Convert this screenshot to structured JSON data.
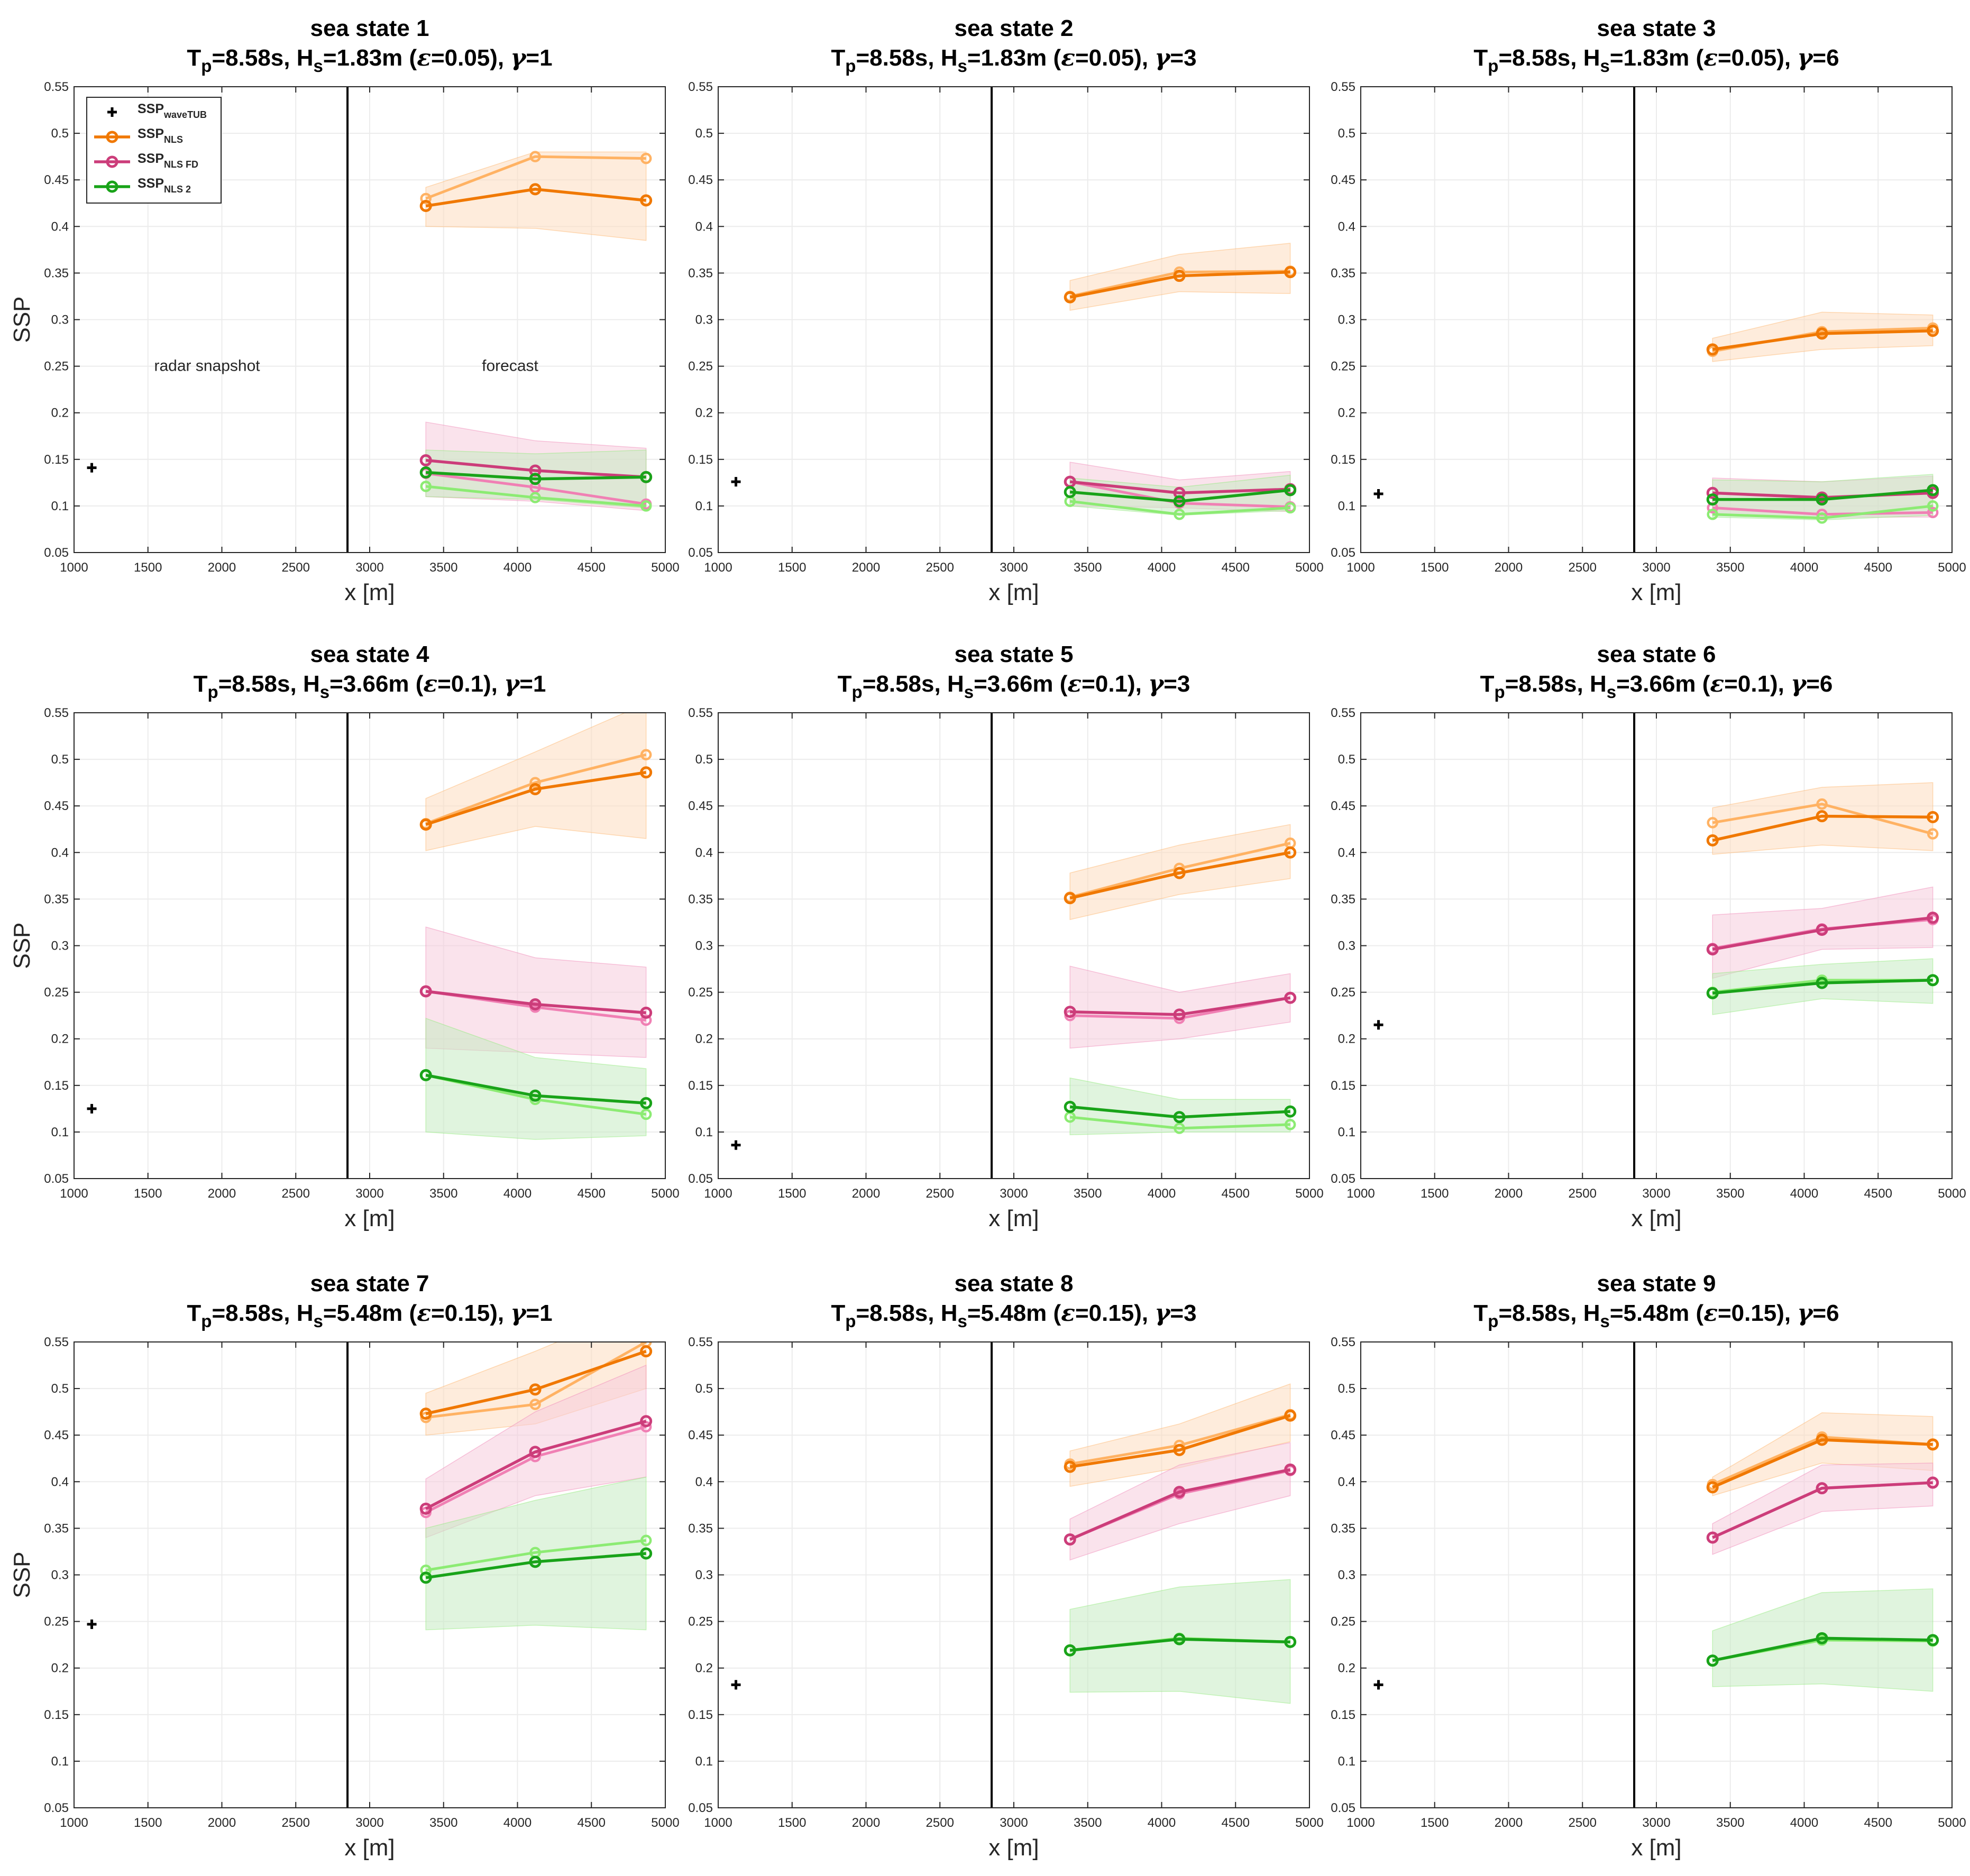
{
  "shared": {
    "xlabel": "x [m]",
    "ylabel": "SSP",
    "xlim": [
      1000,
      5000
    ],
    "ylim": [
      0.05,
      0.55
    ],
    "xticks": [
      1000,
      1500,
      2000,
      2500,
      3000,
      3500,
      4000,
      4500,
      5000
    ],
    "yticks": [
      "0.05",
      "0.1",
      "0.15",
      "0.2",
      "0.25",
      "0.3",
      "0.35",
      "0.4",
      "0.45",
      "0.5",
      "0.55"
    ],
    "radar_boundary_x": 2850,
    "region_labels": {
      "snapshot": "radar snapshot",
      "forecast": "forecast"
    },
    "legend": [
      {
        "base": "SSP",
        "sub": "waveTUB",
        "marker": "plus",
        "color": "#000000"
      },
      {
        "base": "SSP",
        "sub": "NLS",
        "marker": "circle",
        "color": "#F07800"
      },
      {
        "base": "SSP",
        "sub": "NLS FD",
        "marker": "circle",
        "color": "#CC3D7A"
      },
      {
        "base": "SSP",
        "sub": "NLS 2",
        "marker": "circle",
        "color": "#19A319"
      }
    ],
    "colors": {
      "nls": "#F07800",
      "nls_light": "#FFB263",
      "nls_band": "#FDDDBF",
      "nlsfd": "#CC3D7A",
      "nlsfd_light": "#F080B4",
      "nlsfd_band": "#F5CCDC",
      "nls2": "#19A319",
      "nls2_light": "#8CEB73",
      "nls2_band": "#C7EBC2",
      "wavetub": "#000000"
    }
  },
  "chart_data": [
    {
      "type": "line",
      "title": "sea state 1",
      "subtitle": {
        "Tp": "8.58s",
        "Hs": "1.83m",
        "eps": "0.05",
        "gamma": "1"
      },
      "waveTUB": {
        "x": 1120,
        "y": 0.141
      },
      "x": [
        3380,
        4120,
        4870
      ],
      "series": [
        {
          "name": "NLS",
          "values": [
            0.422,
            0.44,
            0.428
          ],
          "light": [
            0.43,
            0.475,
            0.473
          ],
          "band": [
            [
              0.4,
              0.442
            ],
            [
              0.398,
              0.48
            ],
            [
              0.385,
              0.48
            ]
          ]
        },
        {
          "name": "NLS FD",
          "values": [
            0.149,
            0.138,
            0.131
          ],
          "light": [
            0.135,
            0.12,
            0.102
          ],
          "band": [
            [
              0.11,
              0.19
            ],
            [
              0.105,
              0.17
            ],
            [
              0.095,
              0.162
            ]
          ]
        },
        {
          "name": "NLS 2",
          "values": [
            0.136,
            0.129,
            0.131
          ],
          "light": [
            0.121,
            0.109,
            0.1
          ],
          "band": [
            [
              0.11,
              0.16
            ],
            [
              0.107,
              0.156
            ],
            [
              0.098,
              0.16
            ]
          ]
        }
      ]
    },
    {
      "type": "line",
      "title": "sea state 2",
      "subtitle": {
        "Tp": "8.58s",
        "Hs": "1.83m",
        "eps": "0.05",
        "gamma": "3"
      },
      "waveTUB": {
        "x": 1120,
        "y": 0.126
      },
      "x": [
        3380,
        4120,
        4870
      ],
      "series": [
        {
          "name": "NLS",
          "values": [
            0.324,
            0.347,
            0.351
          ],
          "light": [
            0.325,
            0.351,
            0.352
          ],
          "band": [
            [
              0.31,
              0.342
            ],
            [
              0.33,
              0.37
            ],
            [
              0.328,
              0.382
            ]
          ]
        },
        {
          "name": "NLS FD",
          "values": [
            0.126,
            0.114,
            0.118
          ],
          "light": [
            0.126,
            0.103,
            0.099
          ],
          "band": [
            [
              0.1,
              0.147
            ],
            [
              0.098,
              0.128
            ],
            [
              0.094,
              0.137
            ]
          ]
        },
        {
          "name": "NLS 2",
          "values": [
            0.115,
            0.105,
            0.117
          ],
          "light": [
            0.105,
            0.091,
            0.098
          ],
          "band": [
            [
              0.1,
              0.13
            ],
            [
              0.09,
              0.12
            ],
            [
              0.095,
              0.133
            ]
          ]
        }
      ]
    },
    {
      "type": "line",
      "title": "sea state 3",
      "subtitle": {
        "Tp": "8.58s",
        "Hs": "1.83m",
        "eps": "0.05",
        "gamma": "6"
      },
      "waveTUB": {
        "x": 1120,
        "y": 0.113
      },
      "x": [
        3380,
        4120,
        4870
      ],
      "series": [
        {
          "name": "NLS",
          "values": [
            0.268,
            0.285,
            0.288
          ],
          "light": [
            0.266,
            0.287,
            0.291
          ],
          "band": [
            [
              0.255,
              0.28
            ],
            [
              0.268,
              0.308
            ],
            [
              0.272,
              0.305
            ]
          ]
        },
        {
          "name": "NLS FD",
          "values": [
            0.114,
            0.109,
            0.114
          ],
          "light": [
            0.098,
            0.091,
            0.093
          ],
          "band": [
            [
              0.09,
              0.13
            ],
            [
              0.088,
              0.126
            ],
            [
              0.088,
              0.132
            ]
          ]
        },
        {
          "name": "NLS 2",
          "values": [
            0.107,
            0.107,
            0.117
          ],
          "light": [
            0.091,
            0.087,
            0.1
          ],
          "band": [
            [
              0.088,
              0.128
            ],
            [
              0.085,
              0.126
            ],
            [
              0.09,
              0.134
            ]
          ]
        }
      ]
    },
    {
      "type": "line",
      "title": "sea state 4",
      "subtitle": {
        "Tp": "8.58s",
        "Hs": "3.66m",
        "eps": "0.1",
        "gamma": "1"
      },
      "waveTUB": {
        "x": 1120,
        "y": 0.125
      },
      "x": [
        3380,
        4120,
        4870
      ],
      "series": [
        {
          "name": "NLS",
          "values": [
            0.43,
            0.468,
            0.486
          ],
          "light": [
            0.431,
            0.475,
            0.505
          ],
          "band": [
            [
              0.402,
              0.458
            ],
            [
              0.428,
              0.508
            ],
            [
              0.415,
              0.56
            ]
          ]
        },
        {
          "name": "NLS FD",
          "values": [
            0.251,
            0.237,
            0.228
          ],
          "light": [
            0.251,
            0.234,
            0.22
          ],
          "band": [
            [
              0.19,
              0.32
            ],
            [
              0.185,
              0.287
            ],
            [
              0.18,
              0.277
            ]
          ]
        },
        {
          "name": "NLS 2",
          "values": [
            0.161,
            0.139,
            0.131
          ],
          "light": [
            0.161,
            0.135,
            0.119
          ],
          "band": [
            [
              0.1,
              0.222
            ],
            [
              0.092,
              0.18
            ],
            [
              0.096,
              0.168
            ]
          ]
        }
      ]
    },
    {
      "type": "line",
      "title": "sea state 5",
      "subtitle": {
        "Tp": "8.58s",
        "Hs": "3.66m",
        "eps": "0.1",
        "gamma": "3"
      },
      "waveTUB": {
        "x": 1120,
        "y": 0.086
      },
      "x": [
        3380,
        4120,
        4870
      ],
      "series": [
        {
          "name": "NLS",
          "values": [
            0.351,
            0.378,
            0.4
          ],
          "light": [
            0.352,
            0.383,
            0.41
          ],
          "band": [
            [
              0.328,
              0.378
            ],
            [
              0.355,
              0.408
            ],
            [
              0.372,
              0.43
            ]
          ]
        },
        {
          "name": "NLS FD",
          "values": [
            0.229,
            0.226,
            0.244
          ],
          "light": [
            0.225,
            0.222,
            0.244
          ],
          "band": [
            [
              0.19,
              0.278
            ],
            [
              0.2,
              0.25
            ],
            [
              0.218,
              0.27
            ]
          ]
        },
        {
          "name": "NLS 2",
          "values": [
            0.127,
            0.116,
            0.122
          ],
          "light": [
            0.116,
            0.104,
            0.108
          ],
          "band": [
            [
              0.097,
              0.158
            ],
            [
              0.1,
              0.135
            ],
            [
              0.1,
              0.135
            ]
          ]
        }
      ]
    },
    {
      "type": "line",
      "title": "sea state 6",
      "subtitle": {
        "Tp": "8.58s",
        "Hs": "3.66m",
        "eps": "0.1",
        "gamma": "6"
      },
      "waveTUB": {
        "x": 1120,
        "y": 0.215
      },
      "x": [
        3380,
        4120,
        4870
      ],
      "series": [
        {
          "name": "NLS",
          "values": [
            0.413,
            0.439,
            0.438
          ],
          "light": [
            0.432,
            0.452,
            0.42
          ],
          "band": [
            [
              0.398,
              0.448
            ],
            [
              0.408,
              0.47
            ],
            [
              0.402,
              0.475
            ]
          ]
        },
        {
          "name": "NLS FD",
          "values": [
            0.296,
            0.317,
            0.33
          ],
          "light": [
            0.297,
            0.318,
            0.328
          ],
          "band": [
            [
              0.265,
              0.333
            ],
            [
              0.296,
              0.34
            ],
            [
              0.298,
              0.363
            ]
          ]
        },
        {
          "name": "NLS 2",
          "values": [
            0.249,
            0.26,
            0.263
          ],
          "light": [
            0.25,
            0.263,
            0.263
          ],
          "band": [
            [
              0.226,
              0.27
            ],
            [
              0.243,
              0.28
            ],
            [
              0.238,
              0.286
            ]
          ]
        }
      ]
    },
    {
      "type": "line",
      "title": "sea state 7",
      "subtitle": {
        "Tp": "8.58s",
        "Hs": "5.48m",
        "eps": "0.15",
        "gamma": "1"
      },
      "waveTUB": {
        "x": 1120,
        "y": 0.247
      },
      "x": [
        3380,
        4120,
        4870
      ],
      "series": [
        {
          "name": "NLS",
          "values": [
            0.473,
            0.499,
            0.54
          ],
          "light": [
            0.469,
            0.483,
            0.55
          ],
          "band": [
            [
              0.45,
              0.495
            ],
            [
              0.462,
              0.54
            ],
            [
              0.5,
              0.59
            ]
          ]
        },
        {
          "name": "NLS FD",
          "values": [
            0.371,
            0.432,
            0.465
          ],
          "light": [
            0.367,
            0.427,
            0.459
          ],
          "band": [
            [
              0.34,
              0.403
            ],
            [
              0.385,
              0.475
            ],
            [
              0.405,
              0.525
            ]
          ]
        },
        {
          "name": "NLS 2",
          "values": [
            0.297,
            0.314,
            0.323
          ],
          "light": [
            0.305,
            0.324,
            0.337
          ],
          "band": [
            [
              0.241,
              0.35
            ],
            [
              0.246,
              0.38
            ],
            [
              0.241,
              0.405
            ]
          ]
        }
      ]
    },
    {
      "type": "line",
      "title": "sea state 8",
      "subtitle": {
        "Tp": "8.58s",
        "Hs": "5.48m",
        "eps": "0.15",
        "gamma": "3"
      },
      "waveTUB": {
        "x": 1120,
        "y": 0.182
      },
      "x": [
        3380,
        4120,
        4870
      ],
      "series": [
        {
          "name": "NLS",
          "values": [
            0.416,
            0.434,
            0.471
          ],
          "light": [
            0.419,
            0.439,
            0.472
          ],
          "band": [
            [
              0.395,
              0.433
            ],
            [
              0.415,
              0.462
            ],
            [
              0.443,
              0.505
            ]
          ]
        },
        {
          "name": "NLS FD",
          "values": [
            0.338,
            0.389,
            0.413
          ],
          "light": [
            0.338,
            0.387,
            0.412
          ],
          "band": [
            [
              0.316,
              0.36
            ],
            [
              0.355,
              0.418
            ],
            [
              0.385,
              0.442
            ]
          ]
        },
        {
          "name": "NLS 2",
          "values": [
            0.219,
            0.231,
            0.228
          ],
          "light": [
            0.219,
            0.232,
            0.228
          ],
          "band": [
            [
              0.174,
              0.263
            ],
            [
              0.175,
              0.287
            ],
            [
              0.162,
              0.295
            ]
          ]
        }
      ]
    },
    {
      "type": "line",
      "title": "sea state 9",
      "subtitle": {
        "Tp": "8.58s",
        "Hs": "5.48m",
        "eps": "0.15",
        "gamma": "6"
      },
      "waveTUB": {
        "x": 1120,
        "y": 0.182
      },
      "x": [
        3380,
        4120,
        4870
      ],
      "series": [
        {
          "name": "NLS",
          "values": [
            0.394,
            0.445,
            0.44
          ],
          "light": [
            0.397,
            0.448,
            0.44
          ],
          "band": [
            [
              0.385,
              0.405
            ],
            [
              0.42,
              0.474
            ],
            [
              0.412,
              0.47
            ]
          ]
        },
        {
          "name": "NLS FD",
          "values": [
            0.34,
            0.393,
            0.399
          ],
          "light": [
            0.34,
            0.393,
            0.399
          ],
          "band": [
            [
              0.322,
              0.355
            ],
            [
              0.368,
              0.418
            ],
            [
              0.374,
              0.42
            ]
          ]
        },
        {
          "name": "NLS 2",
          "values": [
            0.208,
            0.232,
            0.23
          ],
          "light": [
            0.208,
            0.23,
            0.229
          ],
          "band": [
            [
              0.18,
              0.24
            ],
            [
              0.183,
              0.281
            ],
            [
              0.175,
              0.285
            ]
          ]
        }
      ]
    }
  ]
}
